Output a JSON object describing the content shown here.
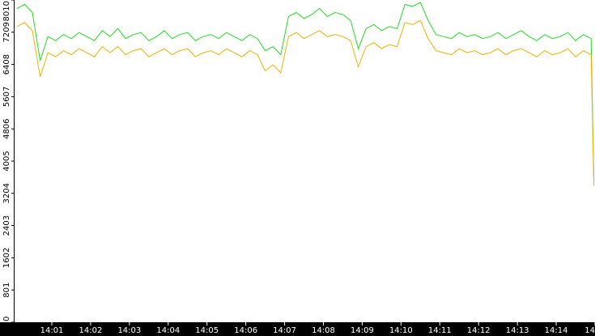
{
  "chart_data": {
    "type": "line",
    "x": [
      0.1,
      0.3,
      0.5,
      0.7,
      0.9,
      1.1,
      1.3,
      1.5,
      1.7,
      1.9,
      2.1,
      2.3,
      2.5,
      2.7,
      2.9,
      3.1,
      3.3,
      3.5,
      3.7,
      3.9,
      4.1,
      4.3,
      4.5,
      4.7,
      4.9,
      5.1,
      5.3,
      5.5,
      5.7,
      5.9,
      6.1,
      6.3,
      6.5,
      6.7,
      6.9,
      7.1,
      7.3,
      7.5,
      7.7,
      7.9,
      8.1,
      8.3,
      8.5,
      8.7,
      8.9,
      9.1,
      9.3,
      9.5,
      9.7,
      9.9,
      10.1,
      10.3,
      10.5,
      10.7,
      10.9,
      11.1,
      11.3,
      11.5,
      11.7,
      11.9,
      12.1,
      12.3,
      12.5,
      12.7,
      12.9,
      13.1,
      13.3,
      13.5,
      13.7,
      13.9,
      14.1,
      14.3,
      14.5,
      14.7,
      14.9,
      14.97
    ],
    "series": [
      {
        "color": "#22dd22",
        "values": [
          7800,
          7900,
          7700,
          6500,
          7100,
          7000,
          7150,
          7050,
          7200,
          7100,
          7000,
          7250,
          7100,
          7300,
          7050,
          7150,
          7200,
          7000,
          7100,
          7250,
          7050,
          7150,
          7200,
          7000,
          7100,
          7150,
          7050,
          7200,
          7100,
          7000,
          7150,
          7050,
          6750,
          6850,
          6650,
          7600,
          7700,
          7550,
          7650,
          7800,
          7600,
          7700,
          7650,
          7500,
          6800,
          7300,
          7400,
          7250,
          7350,
          7300,
          7900,
          7850,
          7950,
          7500,
          7150,
          7100,
          7050,
          7200,
          7100,
          7150,
          7050,
          7100,
          7200,
          7050,
          7150,
          7250,
          7100,
          7000,
          7150,
          7050,
          7100,
          7200,
          7000,
          7150,
          7050,
          3500
        ]
      },
      {
        "color": "#f0b000",
        "values": [
          7350,
          7450,
          7250,
          6100,
          6700,
          6600,
          6750,
          6650,
          6800,
          6700,
          6600,
          6850,
          6700,
          6850,
          6650,
          6750,
          6800,
          6600,
          6700,
          6800,
          6650,
          6750,
          6800,
          6600,
          6700,
          6750,
          6650,
          6800,
          6700,
          6600,
          6750,
          6650,
          6250,
          6400,
          6200,
          7100,
          7200,
          7050,
          7150,
          7250,
          7100,
          7150,
          7100,
          7000,
          6350,
          6850,
          6950,
          6800,
          6900,
          6850,
          7450,
          7400,
          7500,
          7050,
          6750,
          6700,
          6650,
          6800,
          6700,
          6750,
          6650,
          6700,
          6800,
          6650,
          6750,
          6800,
          6700,
          6600,
          6750,
          6650,
          6700,
          6800,
          6600,
          6750,
          6650,
          3400
        ]
      }
    ],
    "xlim": [
      0.04,
      15
    ],
    "xticks": [
      {
        "value": 1,
        "label": "14:01"
      },
      {
        "value": 2,
        "label": "14:02"
      },
      {
        "value": 3,
        "label": "14:03"
      },
      {
        "value": 4,
        "label": "14:04"
      },
      {
        "value": 5,
        "label": "14:05"
      },
      {
        "value": 6,
        "label": "14:06"
      },
      {
        "value": 7,
        "label": "14:07"
      },
      {
        "value": 8,
        "label": "14:08"
      },
      {
        "value": 9,
        "label": "14:09"
      },
      {
        "value": 10,
        "label": "14:10"
      },
      {
        "value": 11,
        "label": "14:11"
      },
      {
        "value": 12,
        "label": "14:12"
      },
      {
        "value": 13,
        "label": "14:13"
      },
      {
        "value": 14,
        "label": "14:14"
      },
      {
        "value": 15,
        "label": "14"
      }
    ],
    "ylim": [
      0,
      8010
    ],
    "yticks": [
      0,
      801,
      1602,
      2403,
      3204,
      4005,
      4806,
      5607,
      6408,
      7209,
      8010
    ]
  }
}
